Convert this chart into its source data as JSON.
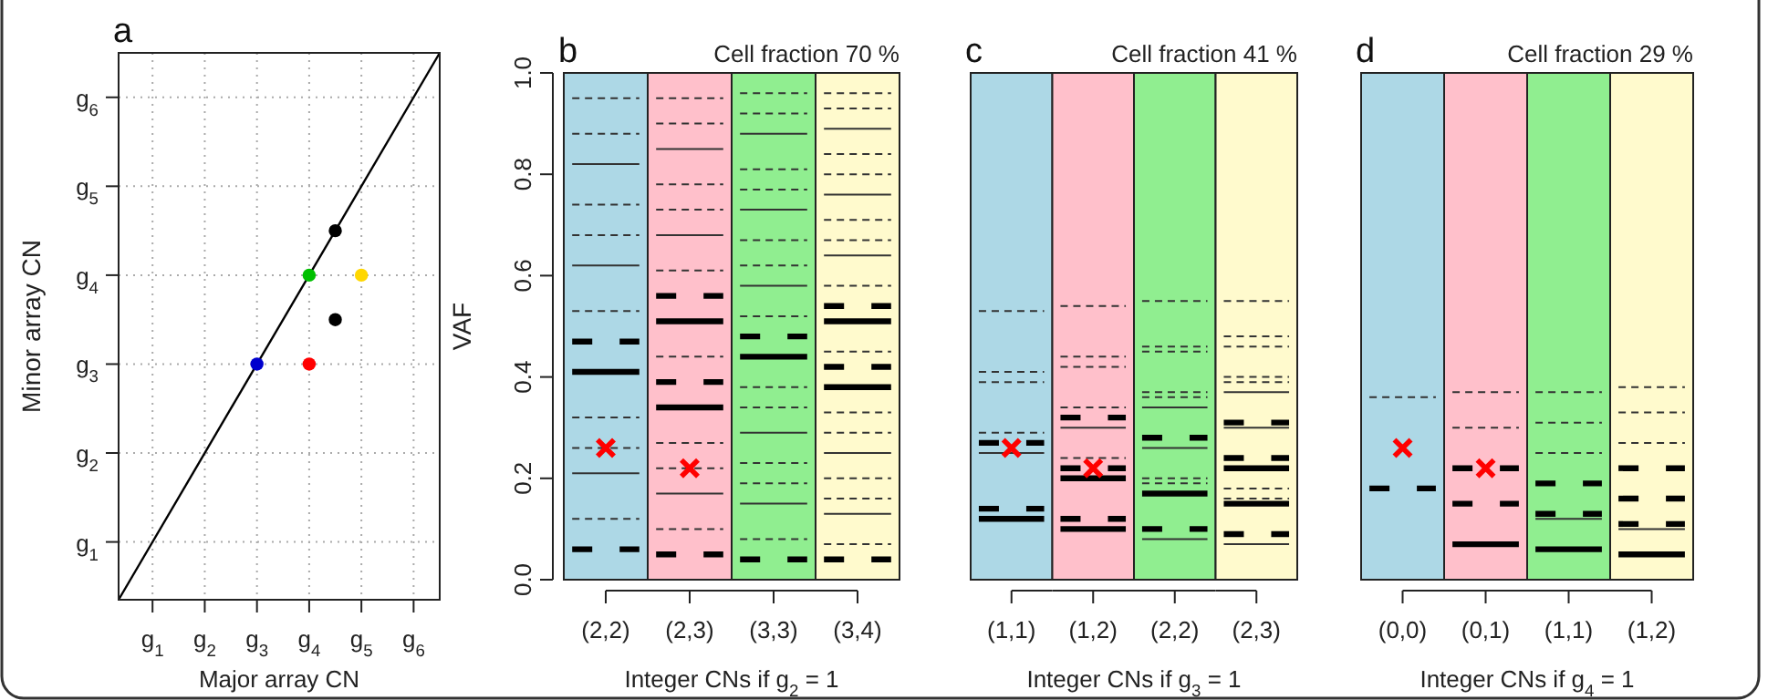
{
  "chart_data": [
    {
      "type": "scatter",
      "annotations": [
        "a"
      ],
      "xlabel": "Major array CN",
      "ylabel": "Minor array CN",
      "xlim": [
        0.35,
        6.5
      ],
      "ylim": [
        0.35,
        6.5
      ],
      "xticks": [
        {
          "value": 1,
          "label": "g$_{1}$"
        },
        {
          "value": 2,
          "label": "g$_{2}$"
        },
        {
          "value": 3,
          "label": "g$_{3}$"
        },
        {
          "value": 4,
          "label": "g$_{4}$"
        },
        {
          "value": 5,
          "label": "g$_{5}$"
        },
        {
          "value": 6,
          "label": "g$_{6}$"
        }
      ],
      "yticks": [
        {
          "value": 1,
          "label": "g$_{1}$"
        },
        {
          "value": 2,
          "label": "g$_{2}$"
        },
        {
          "value": 3,
          "label": "g$_{3}$"
        },
        {
          "value": 4,
          "label": "g$_{4}$"
        },
        {
          "value": 5,
          "label": "g$_{5}$"
        },
        {
          "value": 6,
          "label": "g$_{6}$"
        }
      ],
      "grid": true,
      "series": [
        {
          "type": "line",
          "color": "#000000",
          "x": [
            0.35,
            6.5
          ],
          "values": [
            0.35,
            6.5
          ]
        },
        {
          "marker": "circle",
          "colors": [
            "#0000cd",
            "#ff0000",
            "#00c000",
            "#ffd700",
            "#000000",
            "#000000"
          ],
          "x": [
            3,
            4,
            4,
            5,
            4.5,
            4.5
          ],
          "values": [
            3,
            3,
            4,
            4,
            4.5,
            3.5
          ]
        }
      ]
    },
    {
      "type": "scatter",
      "annotations": [
        "b"
      ],
      "ylabel": "VAF",
      "categories": [
        "(2,2)"
      ],
      "ylim": [
        0,
        1
      ],
      "yticks": [
        {
          "value": 0,
          "label": "0.0"
        },
        0.2,
        0.4,
        0.6,
        0.8,
        {
          "value": 1,
          "label": "1.0"
        }
      ],
      "bands": [
        {
          "axis": "y",
          "from": 0,
          "to": 1,
          "color": "#add8e6"
        }
      ],
      "ref_lines": [
        {
          "axis": "y",
          "value": 0.95,
          "line_style": "dotted",
          "color": "#333333"
        },
        {
          "axis": "y",
          "value": 0.88,
          "line_style": "dotted",
          "color": "#333333"
        },
        {
          "axis": "y",
          "value": 0.74,
          "line_style": "dotted",
          "color": "#333333"
        },
        {
          "axis": "y",
          "value": 0.68,
          "line_style": "dotted",
          "color": "#333333"
        },
        {
          "axis": "y",
          "value": 0.53,
          "line_style": "dotted",
          "color": "#333333"
        },
        {
          "axis": "y",
          "value": 0.32,
          "line_style": "dotted",
          "color": "#333333"
        },
        {
          "axis": "y",
          "value": 0.26,
          "line_style": "dotted",
          "color": "#333333"
        },
        {
          "axis": "y",
          "value": 0.12,
          "line_style": "dotted",
          "color": "#333333"
        },
        {
          "axis": "y",
          "value": 0.82,
          "line_style": "solid",
          "color": "#333333"
        },
        {
          "axis": "y",
          "value": 0.62,
          "line_style": "solid",
          "color": "#333333"
        },
        {
          "axis": "y",
          "value": 0.21,
          "line_style": "solid",
          "color": "#333333"
        },
        {
          "axis": "y",
          "value": 0.47,
          "line_style": "dashed",
          "color": "#000000"
        },
        {
          "axis": "y",
          "value": 0.06,
          "line_style": "dashed",
          "color": "#000000"
        },
        {
          "axis": "y",
          "value": 0.41,
          "line_style": "solid",
          "color": "#000000"
        }
      ],
      "series": [
        {
          "marker": "cross",
          "color": "#ff0000",
          "x": [
            "(2,2)"
          ],
          "values": [
            0.26
          ]
        }
      ]
    },
    {
      "type": "scatter",
      "xlabel": "Integer CNs if g$_{2}$ = 1",
      "categories": [
        "(2,3)"
      ],
      "ylim": [
        0,
        1
      ],
      "tick_labels": "x",
      "bands": [
        {
          "axis": "y",
          "from": 0,
          "to": 1,
          "color": "#ffc0cb"
        }
      ],
      "ref_lines": [
        {
          "axis": "y",
          "value": 0.95,
          "line_style": "dotted",
          "color": "#333333"
        },
        {
          "axis": "y",
          "value": 0.9,
          "line_style": "dotted",
          "color": "#333333"
        },
        {
          "axis": "y",
          "value": 0.78,
          "line_style": "dotted",
          "color": "#333333"
        },
        {
          "axis": "y",
          "value": 0.73,
          "line_style": "dotted",
          "color": "#333333"
        },
        {
          "axis": "y",
          "value": 0.61,
          "line_style": "dotted",
          "color": "#333333"
        },
        {
          "axis": "y",
          "value": 0.44,
          "line_style": "dotted",
          "color": "#333333"
        },
        {
          "axis": "y",
          "value": 0.27,
          "line_style": "dotted",
          "color": "#333333"
        },
        {
          "axis": "y",
          "value": 0.22,
          "line_style": "dotted",
          "color": "#333333"
        },
        {
          "axis": "y",
          "value": 0.1,
          "line_style": "dotted",
          "color": "#333333"
        },
        {
          "axis": "y",
          "value": 0.85,
          "line_style": "solid",
          "color": "#333333"
        },
        {
          "axis": "y",
          "value": 0.68,
          "line_style": "solid",
          "color": "#333333"
        },
        {
          "axis": "y",
          "value": 0.17,
          "line_style": "solid",
          "color": "#333333"
        },
        {
          "axis": "y",
          "value": 0.56,
          "line_style": "dashed",
          "color": "#000000"
        },
        {
          "axis": "y",
          "value": 0.39,
          "line_style": "dashed",
          "color": "#000000"
        },
        {
          "axis": "y",
          "value": 0.05,
          "line_style": "dashed",
          "color": "#000000"
        },
        {
          "axis": "y",
          "value": 0.51,
          "line_style": "solid",
          "color": "#000000"
        },
        {
          "axis": "y",
          "value": 0.34,
          "line_style": "solid",
          "color": "#000000"
        }
      ],
      "series": [
        {
          "marker": "cross",
          "color": "#ff0000",
          "x": [
            "(2,3)"
          ],
          "values": [
            0.22
          ]
        }
      ]
    },
    {
      "type": "scatter",
      "categories": [
        "(3,3)"
      ],
      "ylim": [
        0,
        1
      ],
      "tick_labels": "x",
      "bands": [
        {
          "axis": "y",
          "from": 0,
          "to": 1,
          "color": "#90ee90"
        }
      ],
      "ref_lines": [
        {
          "axis": "y",
          "value": 0.96,
          "line_style": "dotted",
          "color": "#333333"
        },
        {
          "axis": "y",
          "value": 0.92,
          "line_style": "dotted",
          "color": "#333333"
        },
        {
          "axis": "y",
          "value": 0.81,
          "line_style": "dotted",
          "color": "#333333"
        },
        {
          "axis": "y",
          "value": 0.77,
          "line_style": "dotted",
          "color": "#333333"
        },
        {
          "axis": "y",
          "value": 0.67,
          "line_style": "dotted",
          "color": "#333333"
        },
        {
          "axis": "y",
          "value": 0.62,
          "line_style": "dotted",
          "color": "#333333"
        },
        {
          "axis": "y",
          "value": 0.52,
          "line_style": "dotted",
          "color": "#333333"
        },
        {
          "axis": "y",
          "value": 0.38,
          "line_style": "dotted",
          "color": "#333333"
        },
        {
          "axis": "y",
          "value": 0.34,
          "line_style": "dotted",
          "color": "#333333"
        },
        {
          "axis": "y",
          "value": 0.23,
          "line_style": "dotted",
          "color": "#333333"
        },
        {
          "axis": "y",
          "value": 0.19,
          "line_style": "dotted",
          "color": "#333333"
        },
        {
          "axis": "y",
          "value": 0.08,
          "line_style": "dotted",
          "color": "#333333"
        },
        {
          "axis": "y",
          "value": 0.88,
          "line_style": "solid",
          "color": "#333333"
        },
        {
          "axis": "y",
          "value": 0.73,
          "line_style": "solid",
          "color": "#333333"
        },
        {
          "axis": "y",
          "value": 0.58,
          "line_style": "solid",
          "color": "#333333"
        },
        {
          "axis": "y",
          "value": 0.29,
          "line_style": "solid",
          "color": "#333333"
        },
        {
          "axis": "y",
          "value": 0.15,
          "line_style": "solid",
          "color": "#333333"
        },
        {
          "axis": "y",
          "value": 0.48,
          "line_style": "dashed",
          "color": "#000000"
        },
        {
          "axis": "y",
          "value": 0.04,
          "line_style": "dashed",
          "color": "#000000"
        },
        {
          "axis": "y",
          "value": 0.44,
          "line_style": "solid",
          "color": "#000000"
        }
      ]
    },
    {
      "type": "scatter",
      "title": "Cell fraction 70 %",
      "categories": [
        "(3,4)"
      ],
      "ylim": [
        0,
        1
      ],
      "tick_labels": "x",
      "bands": [
        {
          "axis": "y",
          "from": 0,
          "to": 1,
          "color": "#fffacd"
        }
      ],
      "ref_lines": [
        {
          "axis": "y",
          "value": 0.96,
          "line_style": "dotted",
          "color": "#333333"
        },
        {
          "axis": "y",
          "value": 0.93,
          "line_style": "dotted",
          "color": "#333333"
        },
        {
          "axis": "y",
          "value": 0.84,
          "line_style": "dotted",
          "color": "#333333"
        },
        {
          "axis": "y",
          "value": 0.8,
          "line_style": "dotted",
          "color": "#333333"
        },
        {
          "axis": "y",
          "value": 0.71,
          "line_style": "dotted",
          "color": "#333333"
        },
        {
          "axis": "y",
          "value": 0.67,
          "line_style": "dotted",
          "color": "#333333"
        },
        {
          "axis": "y",
          "value": 0.58,
          "line_style": "dotted",
          "color": "#333333"
        },
        {
          "axis": "y",
          "value": 0.45,
          "line_style": "dotted",
          "color": "#333333"
        },
        {
          "axis": "y",
          "value": 0.33,
          "line_style": "dotted",
          "color": "#333333"
        },
        {
          "axis": "y",
          "value": 0.29,
          "line_style": "dotted",
          "color": "#333333"
        },
        {
          "axis": "y",
          "value": 0.2,
          "line_style": "dotted",
          "color": "#333333"
        },
        {
          "axis": "y",
          "value": 0.16,
          "line_style": "dotted",
          "color": "#333333"
        },
        {
          "axis": "y",
          "value": 0.07,
          "line_style": "dotted",
          "color": "#333333"
        },
        {
          "axis": "y",
          "value": 0.89,
          "line_style": "solid",
          "color": "#333333"
        },
        {
          "axis": "y",
          "value": 0.76,
          "line_style": "solid",
          "color": "#333333"
        },
        {
          "axis": "y",
          "value": 0.64,
          "line_style": "solid",
          "color": "#333333"
        },
        {
          "axis": "y",
          "value": 0.25,
          "line_style": "solid",
          "color": "#333333"
        },
        {
          "axis": "y",
          "value": 0.13,
          "line_style": "solid",
          "color": "#333333"
        },
        {
          "axis": "y",
          "value": 0.54,
          "line_style": "dashed",
          "color": "#000000"
        },
        {
          "axis": "y",
          "value": 0.42,
          "line_style": "dashed",
          "color": "#000000"
        },
        {
          "axis": "y",
          "value": 0.04,
          "line_style": "dashed",
          "color": "#000000"
        },
        {
          "axis": "y",
          "value": 0.51,
          "line_style": "solid",
          "color": "#000000"
        },
        {
          "axis": "y",
          "value": 0.38,
          "line_style": "solid",
          "color": "#000000"
        }
      ]
    },
    {
      "type": "scatter",
      "annotations": [
        "c"
      ],
      "categories": [
        "(1,1)"
      ],
      "ylim": [
        0,
        1
      ],
      "tick_labels": "x",
      "bands": [
        {
          "axis": "y",
          "from": 0,
          "to": 1,
          "color": "#add8e6"
        }
      ],
      "ref_lines": [
        {
          "axis": "y",
          "value": 0.53,
          "line_style": "dotted",
          "color": "#333333"
        },
        {
          "axis": "y",
          "value": 0.41,
          "line_style": "dotted",
          "color": "#333333"
        },
        {
          "axis": "y",
          "value": 0.39,
          "line_style": "dotted",
          "color": "#333333"
        },
        {
          "axis": "y",
          "value": 0.29,
          "line_style": "dotted",
          "color": "#333333"
        },
        {
          "axis": "y",
          "value": 0.25,
          "line_style": "solid",
          "color": "#333333"
        },
        {
          "axis": "y",
          "value": 0.27,
          "line_style": "dashed",
          "color": "#000000"
        },
        {
          "axis": "y",
          "value": 0.14,
          "line_style": "dashed",
          "color": "#000000"
        },
        {
          "axis": "y",
          "value": 0.12,
          "line_style": "solid",
          "color": "#000000"
        }
      ],
      "series": [
        {
          "marker": "cross",
          "color": "#ff0000",
          "x": [
            "(1,1)"
          ],
          "values": [
            0.26
          ]
        }
      ]
    },
    {
      "type": "scatter",
      "xlabel": "Integer CNs if g$_{3}$ = 1",
      "categories": [
        "(1,2)"
      ],
      "ylim": [
        0,
        1
      ],
      "tick_labels": "x",
      "bands": [
        {
          "axis": "y",
          "from": 0,
          "to": 1,
          "color": "#ffc0cb"
        }
      ],
      "ref_lines": [
        {
          "axis": "y",
          "value": 0.54,
          "line_style": "dotted",
          "color": "#333333"
        },
        {
          "axis": "y",
          "value": 0.44,
          "line_style": "dotted",
          "color": "#333333"
        },
        {
          "axis": "y",
          "value": 0.42,
          "line_style": "dotted",
          "color": "#333333"
        },
        {
          "axis": "y",
          "value": 0.34,
          "line_style": "dotted",
          "color": "#333333"
        },
        {
          "axis": "y",
          "value": 0.24,
          "line_style": "dotted",
          "color": "#333333"
        },
        {
          "axis": "y",
          "value": 0.3,
          "line_style": "solid",
          "color": "#333333"
        },
        {
          "axis": "y",
          "value": 0.32,
          "line_style": "dashed",
          "color": "#000000"
        },
        {
          "axis": "y",
          "value": 0.22,
          "line_style": "dashed",
          "color": "#000000"
        },
        {
          "axis": "y",
          "value": 0.12,
          "line_style": "dashed",
          "color": "#000000"
        },
        {
          "axis": "y",
          "value": 0.2,
          "line_style": "solid",
          "color": "#000000"
        },
        {
          "axis": "y",
          "value": 0.1,
          "line_style": "solid",
          "color": "#000000"
        }
      ],
      "series": [
        {
          "marker": "cross",
          "color": "#ff0000",
          "x": [
            "(1,2)"
          ],
          "values": [
            0.22
          ]
        }
      ]
    },
    {
      "type": "scatter",
      "categories": [
        "(2,2)"
      ],
      "ylim": [
        0,
        1
      ],
      "tick_labels": "x",
      "bands": [
        {
          "axis": "y",
          "from": 0,
          "to": 1,
          "color": "#90ee90"
        }
      ],
      "ref_lines": [
        {
          "axis": "y",
          "value": 0.55,
          "line_style": "dotted",
          "color": "#333333"
        },
        {
          "axis": "y",
          "value": 0.46,
          "line_style": "dotted",
          "color": "#333333"
        },
        {
          "axis": "y",
          "value": 0.45,
          "line_style": "dotted",
          "color": "#333333"
        },
        {
          "axis": "y",
          "value": 0.37,
          "line_style": "dotted",
          "color": "#333333"
        },
        {
          "axis": "y",
          "value": 0.36,
          "line_style": "dotted",
          "color": "#333333"
        },
        {
          "axis": "y",
          "value": 0.2,
          "line_style": "dotted",
          "color": "#333333"
        },
        {
          "axis": "y",
          "value": 0.19,
          "line_style": "dotted",
          "color": "#333333"
        },
        {
          "axis": "y",
          "value": 0.34,
          "line_style": "solid",
          "color": "#333333"
        },
        {
          "axis": "y",
          "value": 0.26,
          "line_style": "solid",
          "color": "#333333"
        },
        {
          "axis": "y",
          "value": 0.08,
          "line_style": "solid",
          "color": "#333333"
        },
        {
          "axis": "y",
          "value": 0.28,
          "line_style": "dashed",
          "color": "#000000"
        },
        {
          "axis": "y",
          "value": 0.1,
          "line_style": "dashed",
          "color": "#000000"
        },
        {
          "axis": "y",
          "value": 0.17,
          "line_style": "solid",
          "color": "#000000"
        }
      ]
    },
    {
      "type": "scatter",
      "title": "Cell fraction 41 %",
      "categories": [
        "(2,3)"
      ],
      "ylim": [
        0,
        1
      ],
      "tick_labels": "x",
      "bands": [
        {
          "axis": "y",
          "from": 0,
          "to": 1,
          "color": "#fffacd"
        }
      ],
      "ref_lines": [
        {
          "axis": "y",
          "value": 0.55,
          "line_style": "dotted",
          "color": "#333333"
        },
        {
          "axis": "y",
          "value": 0.48,
          "line_style": "dotted",
          "color": "#333333"
        },
        {
          "axis": "y",
          "value": 0.46,
          "line_style": "dotted",
          "color": "#333333"
        },
        {
          "axis": "y",
          "value": 0.4,
          "line_style": "dotted",
          "color": "#333333"
        },
        {
          "axis": "y",
          "value": 0.39,
          "line_style": "dotted",
          "color": "#333333"
        },
        {
          "axis": "y",
          "value": 0.18,
          "line_style": "dotted",
          "color": "#333333"
        },
        {
          "axis": "y",
          "value": 0.16,
          "line_style": "dotted",
          "color": "#333333"
        },
        {
          "axis": "y",
          "value": 0.37,
          "line_style": "solid",
          "color": "#333333"
        },
        {
          "axis": "y",
          "value": 0.3,
          "line_style": "solid",
          "color": "#333333"
        },
        {
          "axis": "y",
          "value": 0.07,
          "line_style": "solid",
          "color": "#333333"
        },
        {
          "axis": "y",
          "value": 0.31,
          "line_style": "dashed",
          "color": "#000000"
        },
        {
          "axis": "y",
          "value": 0.24,
          "line_style": "dashed",
          "color": "#000000"
        },
        {
          "axis": "y",
          "value": 0.09,
          "line_style": "dashed",
          "color": "#000000"
        },
        {
          "axis": "y",
          "value": 0.22,
          "line_style": "solid",
          "color": "#000000"
        },
        {
          "axis": "y",
          "value": 0.15,
          "line_style": "solid",
          "color": "#000000"
        }
      ]
    },
    {
      "type": "scatter",
      "annotations": [
        "d"
      ],
      "categories": [
        "(0,0)"
      ],
      "ylim": [
        0,
        1
      ],
      "tick_labels": "x",
      "bands": [
        {
          "axis": "y",
          "from": 0,
          "to": 1,
          "color": "#add8e6"
        }
      ],
      "ref_lines": [
        {
          "axis": "y",
          "value": 0.36,
          "line_style": "dotted",
          "color": "#333333"
        },
        {
          "axis": "y",
          "value": 0.18,
          "line_style": "dashed",
          "color": "#000000"
        }
      ],
      "series": [
        {
          "marker": "cross",
          "color": "#ff0000",
          "x": [
            "(0,0)"
          ],
          "values": [
            0.26
          ]
        }
      ]
    },
    {
      "type": "scatter",
      "xlabel": "Integer CNs if g$_{4}$ = 1",
      "categories": [
        "(0,1)"
      ],
      "ylim": [
        0,
        1
      ],
      "tick_labels": "x",
      "bands": [
        {
          "axis": "y",
          "from": 0,
          "to": 1,
          "color": "#ffc0cb"
        }
      ],
      "ref_lines": [
        {
          "axis": "y",
          "value": 0.37,
          "line_style": "dotted",
          "color": "#333333"
        },
        {
          "axis": "y",
          "value": 0.3,
          "line_style": "dotted",
          "color": "#333333"
        },
        {
          "axis": "y",
          "value": 0.22,
          "line_style": "dashed",
          "color": "#000000"
        },
        {
          "axis": "y",
          "value": 0.15,
          "line_style": "dashed",
          "color": "#000000"
        },
        {
          "axis": "y",
          "value": 0.07,
          "line_style": "solid",
          "color": "#000000"
        }
      ],
      "series": [
        {
          "marker": "cross",
          "color": "#ff0000",
          "x": [
            "(0,1)"
          ],
          "values": [
            0.22
          ]
        }
      ]
    },
    {
      "type": "scatter",
      "categories": [
        "(1,1)"
      ],
      "ylim": [
        0,
        1
      ],
      "tick_labels": "x",
      "bands": [
        {
          "axis": "y",
          "from": 0,
          "to": 1,
          "color": "#90ee90"
        }
      ],
      "ref_lines": [
        {
          "axis": "y",
          "value": 0.37,
          "line_style": "dotted",
          "color": "#333333"
        },
        {
          "axis": "y",
          "value": 0.31,
          "line_style": "dotted",
          "color": "#333333"
        },
        {
          "axis": "y",
          "value": 0.25,
          "line_style": "dotted",
          "color": "#333333"
        },
        {
          "axis": "y",
          "value": 0.12,
          "line_style": "solid",
          "color": "#333333"
        },
        {
          "axis": "y",
          "value": 0.19,
          "line_style": "dashed",
          "color": "#000000"
        },
        {
          "axis": "y",
          "value": 0.13,
          "line_style": "dashed",
          "color": "#000000"
        },
        {
          "axis": "y",
          "value": 0.06,
          "line_style": "solid",
          "color": "#000000"
        }
      ]
    },
    {
      "type": "scatter",
      "title": "Cell fraction 29 %",
      "categories": [
        "(1,2)"
      ],
      "ylim": [
        0,
        1
      ],
      "tick_labels": "x",
      "bands": [
        {
          "axis": "y",
          "from": 0,
          "to": 1,
          "color": "#fffacd"
        }
      ],
      "ref_lines": [
        {
          "axis": "y",
          "value": 0.38,
          "line_style": "dotted",
          "color": "#333333"
        },
        {
          "axis": "y",
          "value": 0.33,
          "line_style": "dotted",
          "color": "#333333"
        },
        {
          "axis": "y",
          "value": 0.27,
          "line_style": "dotted",
          "color": "#333333"
        },
        {
          "axis": "y",
          "value": 0.1,
          "line_style": "solid",
          "color": "#333333"
        },
        {
          "axis": "y",
          "value": 0.22,
          "line_style": "dashed",
          "color": "#000000"
        },
        {
          "axis": "y",
          "value": 0.16,
          "line_style": "dashed",
          "color": "#000000"
        },
        {
          "axis": "y",
          "value": 0.11,
          "line_style": "dashed",
          "color": "#000000"
        },
        {
          "axis": "y",
          "value": 0.05,
          "line_style": "solid",
          "color": "#000000"
        }
      ]
    }
  ]
}
